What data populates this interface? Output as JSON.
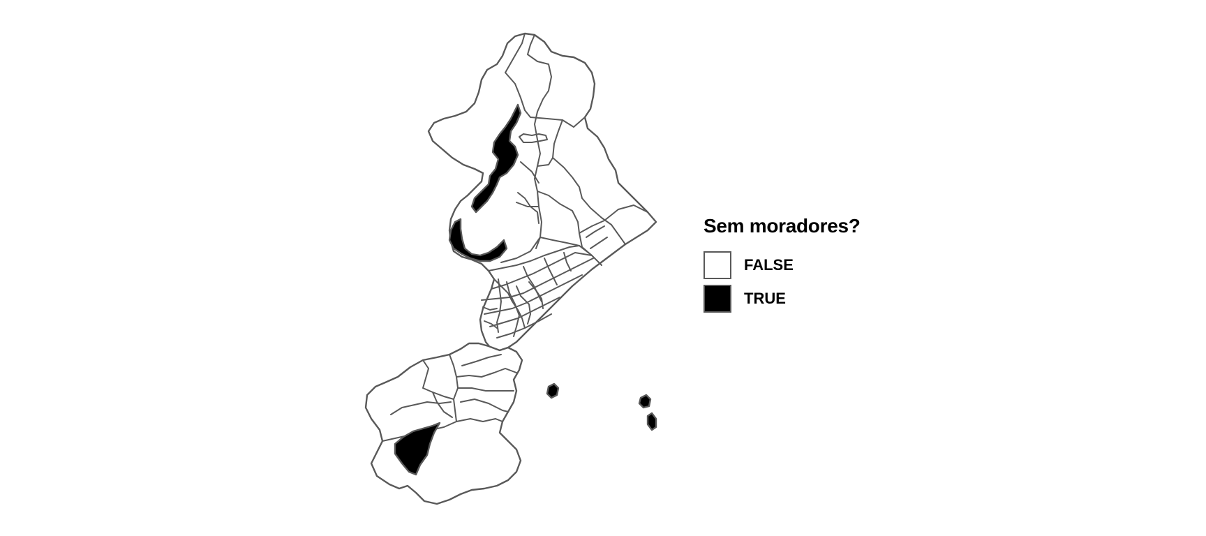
{
  "legend": {
    "title": "Sem moradores?",
    "items": [
      {
        "label": "FALSE",
        "color": "#ffffff"
      },
      {
        "label": "TRUE",
        "color": "#000000"
      }
    ]
  },
  "colors": {
    "border": "#595959",
    "false_fill": "#ffffff",
    "true_fill": "#000000",
    "background": "#ffffff"
  }
}
